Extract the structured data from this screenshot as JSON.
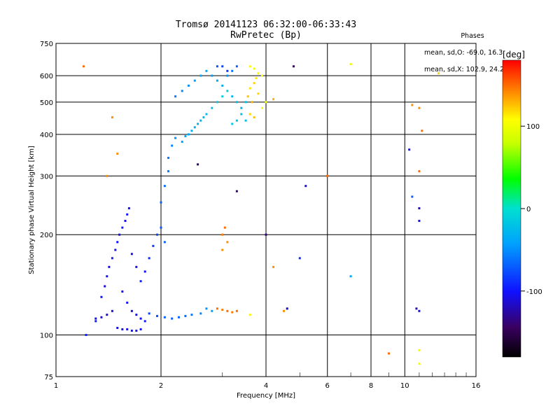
{
  "title_line1": "Tromsø 20141123 06:32:00-06:33:43",
  "title_line2": "RwPretec (Bp)",
  "stats": {
    "header": "Phases",
    "line_o": "mean, sd,O: -69.0, 16.3",
    "line_x": "mean, sd,X: 102.9, 24.2"
  },
  "colorbar": {
    "label": "[deg]",
    "ticks": [
      100,
      0,
      -100
    ],
    "range": [
      -180,
      180
    ]
  },
  "chart_data": {
    "type": "scatter",
    "xlabel": "Frequency [MHz]",
    "ylabel": "Stationary phase Virtual Height [km]",
    "x_scale": "log",
    "y_scale": "log",
    "xlim": [
      1,
      16
    ],
    "ylim": [
      75,
      750
    ],
    "x_ticks": [
      1,
      2,
      4,
      6,
      8,
      10,
      16
    ],
    "y_ticks": [
      75,
      100,
      200,
      300,
      400,
      500,
      600,
      750
    ],
    "grid": true,
    "color_variable": "phase [deg]",
    "points": [
      [
        1.22,
        100,
        -95
      ],
      [
        1.3,
        110,
        -95
      ],
      [
        1.35,
        130,
        -100
      ],
      [
        1.4,
        150,
        -100
      ],
      [
        1.45,
        170,
        -95
      ],
      [
        1.5,
        190,
        -100
      ],
      [
        1.55,
        210,
        -95
      ],
      [
        1.6,
        230,
        -100
      ],
      [
        1.38,
        140,
        -110
      ],
      [
        1.42,
        160,
        -110
      ],
      [
        1.48,
        180,
        -105
      ],
      [
        1.52,
        200,
        -100
      ],
      [
        1.58,
        220,
        -105
      ],
      [
        1.62,
        240,
        -100
      ],
      [
        1.65,
        175,
        -110
      ],
      [
        1.7,
        160,
        -105
      ],
      [
        1.75,
        145,
        -95
      ],
      [
        1.8,
        155,
        -100
      ],
      [
        1.85,
        170,
        -90
      ],
      [
        1.9,
        185,
        -85
      ],
      [
        1.95,
        200,
        -80
      ],
      [
        2.0,
        210,
        -75
      ],
      [
        2.05,
        190,
        -70
      ],
      [
        1.55,
        135,
        -105
      ],
      [
        1.6,
        125,
        -100
      ],
      [
        1.65,
        118,
        -110
      ],
      [
        1.7,
        115,
        -105
      ],
      [
        1.75,
        112,
        -100
      ],
      [
        1.8,
        110,
        -95
      ],
      [
        1.5,
        105,
        -110
      ],
      [
        1.55,
        104,
        -110
      ],
      [
        1.6,
        104,
        -105
      ],
      [
        1.65,
        103,
        -100
      ],
      [
        1.7,
        103,
        -105
      ],
      [
        1.75,
        104,
        -100
      ],
      [
        1.85,
        116,
        -80
      ],
      [
        1.95,
        114,
        -75
      ],
      [
        2.05,
        113,
        -70
      ],
      [
        2.15,
        112,
        -70
      ],
      [
        2.25,
        113,
        -70
      ],
      [
        2.35,
        114,
        -65
      ],
      [
        2.45,
        115,
        -60
      ],
      [
        2.6,
        116,
        -55
      ],
      [
        2.8,
        118,
        -45
      ],
      [
        2.7,
        120,
        -50
      ],
      [
        1.45,
        118,
        -110
      ],
      [
        1.4,
        115,
        -115
      ],
      [
        1.35,
        113,
        -110
      ],
      [
        1.3,
        112,
        -105
      ],
      [
        2.0,
        250,
        -70
      ],
      [
        2.05,
        280,
        -65
      ],
      [
        2.1,
        310,
        -60
      ],
      [
        2.1,
        340,
        -60
      ],
      [
        2.15,
        370,
        -55
      ],
      [
        2.2,
        390,
        -50
      ],
      [
        2.3,
        380,
        -45
      ],
      [
        2.4,
        400,
        -40
      ],
      [
        2.5,
        420,
        -35
      ],
      [
        2.6,
        440,
        -30
      ],
      [
        2.7,
        460,
        -25
      ],
      [
        2.8,
        480,
        -20
      ],
      [
        2.9,
        500,
        -15
      ],
      [
        3.0,
        520,
        -10
      ],
      [
        3.1,
        540,
        -15
      ],
      [
        2.2,
        520,
        -60
      ],
      [
        2.3,
        540,
        -55
      ],
      [
        2.4,
        560,
        -50
      ],
      [
        2.5,
        580,
        -45
      ],
      [
        2.6,
        600,
        -40
      ],
      [
        2.7,
        620,
        -40
      ],
      [
        2.8,
        600,
        -45
      ],
      [
        2.9,
        580,
        -40
      ],
      [
        3.0,
        560,
        -35
      ],
      [
        3.1,
        600,
        -50
      ],
      [
        3.2,
        620,
        -60
      ],
      [
        3.3,
        640,
        -70
      ],
      [
        3.0,
        640,
        -80
      ],
      [
        3.1,
        620,
        -85
      ],
      [
        2.9,
        640,
        -75
      ],
      [
        3.2,
        520,
        -30
      ],
      [
        3.3,
        500,
        -25
      ],
      [
        3.4,
        480,
        -30
      ],
      [
        3.5,
        500,
        -20
      ],
      [
        3.5,
        440,
        -20
      ],
      [
        3.4,
        460,
        -25
      ],
      [
        3.3,
        440,
        -20
      ],
      [
        3.2,
        430,
        -15
      ],
      [
        2.55,
        430,
        -30
      ],
      [
        2.45,
        410,
        -35
      ],
      [
        2.35,
        395,
        -40
      ],
      [
        2.65,
        450,
        -25
      ],
      [
        3.6,
        550,
        115
      ],
      [
        3.7,
        570,
        120
      ],
      [
        3.75,
        590,
        115
      ],
      [
        3.8,
        610,
        110
      ],
      [
        3.7,
        630,
        100
      ],
      [
        3.6,
        640,
        105
      ],
      [
        3.55,
        520,
        125
      ],
      [
        3.65,
        500,
        130
      ],
      [
        3.8,
        530,
        120
      ],
      [
        3.9,
        600,
        100
      ],
      [
        3.6,
        460,
        120
      ],
      [
        3.7,
        450,
        125
      ],
      [
        3.9,
        480,
        110
      ],
      [
        4.0,
        500,
        100
      ],
      [
        4.2,
        510,
        130
      ],
      [
        3.0,
        200,
        145
      ],
      [
        3.1,
        190,
        140
      ],
      [
        3.05,
        210,
        150
      ],
      [
        3.0,
        180,
        140
      ],
      [
        2.9,
        120,
        150
      ],
      [
        3.0,
        119,
        145
      ],
      [
        3.1,
        118,
        150
      ],
      [
        3.2,
        117,
        145
      ],
      [
        3.3,
        118,
        150
      ],
      [
        3.6,
        115,
        110
      ],
      [
        4.5,
        118,
        140
      ],
      [
        4.6,
        120,
        130
      ],
      [
        4.8,
        640,
        -150
      ],
      [
        7.0,
        650,
        100
      ],
      [
        10.5,
        490,
        140
      ],
      [
        11.0,
        480,
        140
      ],
      [
        11.2,
        410,
        150
      ],
      [
        10.3,
        360,
        -100
      ],
      [
        11.0,
        310,
        150
      ],
      [
        10.5,
        260,
        -70
      ],
      [
        11.0,
        240,
        -120
      ],
      [
        11.0,
        220,
        -110
      ],
      [
        10.8,
        120,
        -120
      ],
      [
        11.0,
        118,
        -110
      ],
      [
        12.5,
        610,
        120
      ],
      [
        9.0,
        88,
        150
      ],
      [
        11.0,
        82,
        100
      ],
      [
        11.0,
        90,
        100
      ],
      [
        7.0,
        150,
        -40
      ],
      [
        4.6,
        120,
        -110
      ],
      [
        6.0,
        300,
        150
      ],
      [
        5.0,
        170,
        -90
      ],
      [
        2.55,
        325,
        -140
      ],
      [
        3.3,
        270,
        -140
      ],
      [
        4.0,
        200,
        -140
      ],
      [
        5.2,
        280,
        -110
      ],
      [
        4.2,
        160,
        140
      ],
      [
        1.2,
        640,
        150
      ],
      [
        1.45,
        450,
        140
      ],
      [
        1.5,
        350,
        140
      ],
      [
        1.4,
        300,
        140
      ]
    ]
  }
}
